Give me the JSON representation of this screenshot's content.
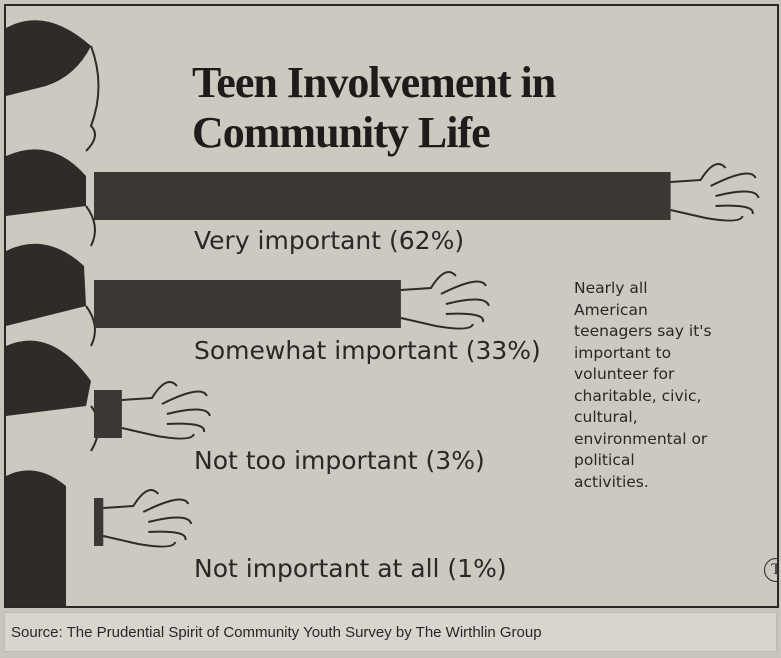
{
  "chart_data": {
    "type": "bar",
    "orientation": "horizontal",
    "title": "Teen Involvement in Community Life",
    "categories": [
      "Very important (62%)",
      "Somewhat important (33%)",
      "Not too important (3%)",
      "Not important at all (1%)"
    ],
    "values": [
      62,
      33,
      3,
      1
    ],
    "color": "#3a3734",
    "annotation": "Nearly all American teenagers say it's important to volunteer for charitable, civic, cultural, environmental or political activities.",
    "source": "Source: The Prudential Spirit of Community Youth Survey by The Wirthlin Group",
    "logo": "T"
  }
}
